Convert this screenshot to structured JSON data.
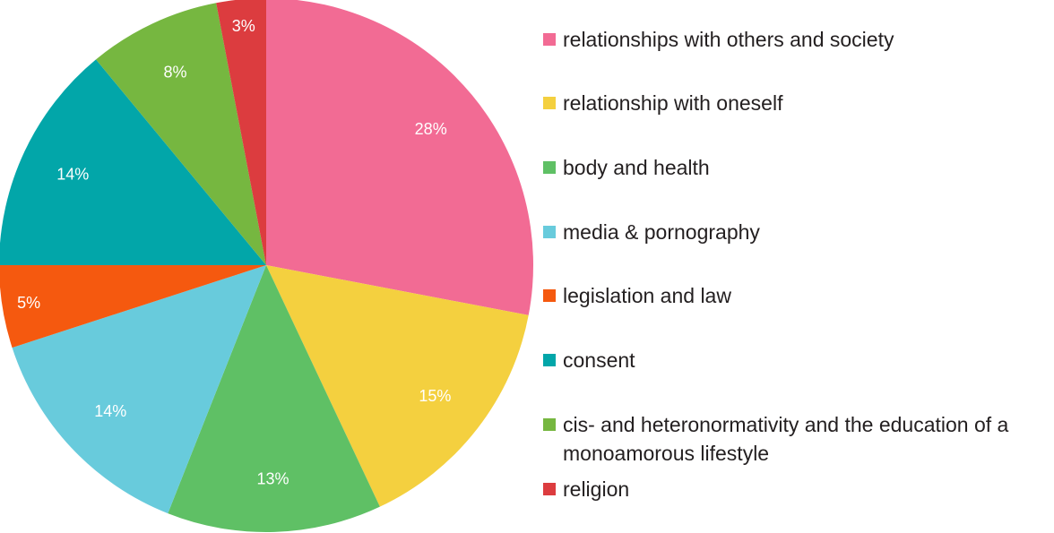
{
  "chart_data": {
    "type": "pie",
    "slices": [
      {
        "label": "relationships with others and society",
        "value": 28,
        "value_label": "28%",
        "color": "#f26b94"
      },
      {
        "label": "relationship with oneself",
        "value": 15,
        "value_label": "15%",
        "color": "#f4d03f"
      },
      {
        "label": "body and health",
        "value": 13,
        "value_label": "13%",
        "color": "#5fc065"
      },
      {
        "label": "media & pornography",
        "value": 14,
        "value_label": "14%",
        "color": "#68cbdc"
      },
      {
        "label": "legislation and law",
        "value": 5,
        "value_label": "5%",
        "color": "#f5590f"
      },
      {
        "label": "consent",
        "value": 14,
        "value_label": "14%",
        "color": "#02a6a9"
      },
      {
        "label": "cis- and heteronormativity and the education of a monoamorous lifestyle",
        "value": 8,
        "value_label": "8%",
        "color": "#76b740"
      },
      {
        "label": "religion",
        "value": 3,
        "value_label": "3%",
        "color": "#dc3c3f"
      }
    ],
    "legend_position": "right"
  }
}
